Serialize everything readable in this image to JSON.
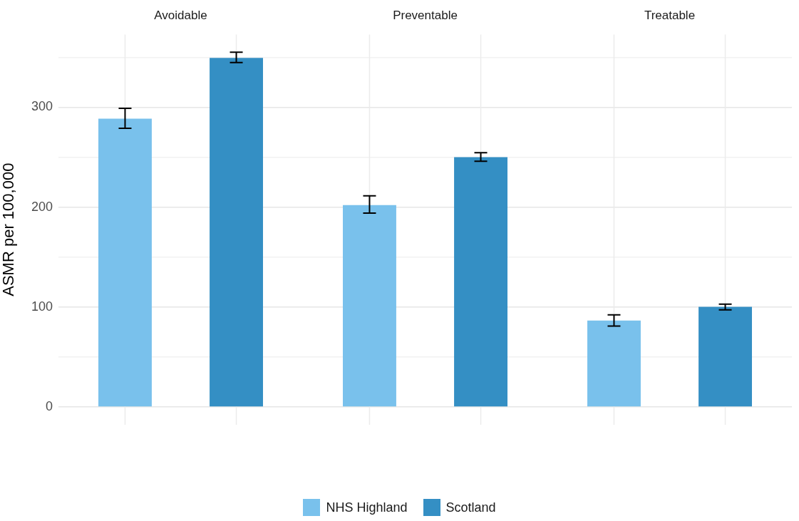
{
  "chart_data": {
    "type": "bar",
    "ylabel": "ASMR per 100,000",
    "categories": [
      "Avoidable",
      "Preventable",
      "Treatable"
    ],
    "series": [
      {
        "name": "NHS Highland",
        "color": "#79c1ec",
        "values": [
          288.5,
          202,
          86.5
        ],
        "errors": [
          [
            279,
            298.9
          ],
          [
            194,
            211.3
          ],
          [
            81,
            92.2
          ]
        ]
      },
      {
        "name": "Scotland",
        "color": "#348fc4",
        "values": [
          349.3,
          250,
          100.2
        ],
        "errors": [
          [
            344.7,
            355
          ],
          [
            246,
            254.5
          ],
          [
            97.3,
            103
          ]
        ]
      }
    ],
    "ylim": [
      -17.8,
      372.8
    ],
    "yticks": [
      {
        "value": 0,
        "label": "0"
      },
      {
        "value": 50,
        "label": null
      },
      {
        "value": 100,
        "label": "100"
      },
      {
        "value": 150,
        "label": null
      },
      {
        "value": 200,
        "label": "200"
      },
      {
        "value": 250,
        "label": null
      },
      {
        "value": 300,
        "label": "300"
      },
      {
        "value": 350,
        "label": null
      }
    ],
    "grid": true,
    "legend": "bottom"
  }
}
